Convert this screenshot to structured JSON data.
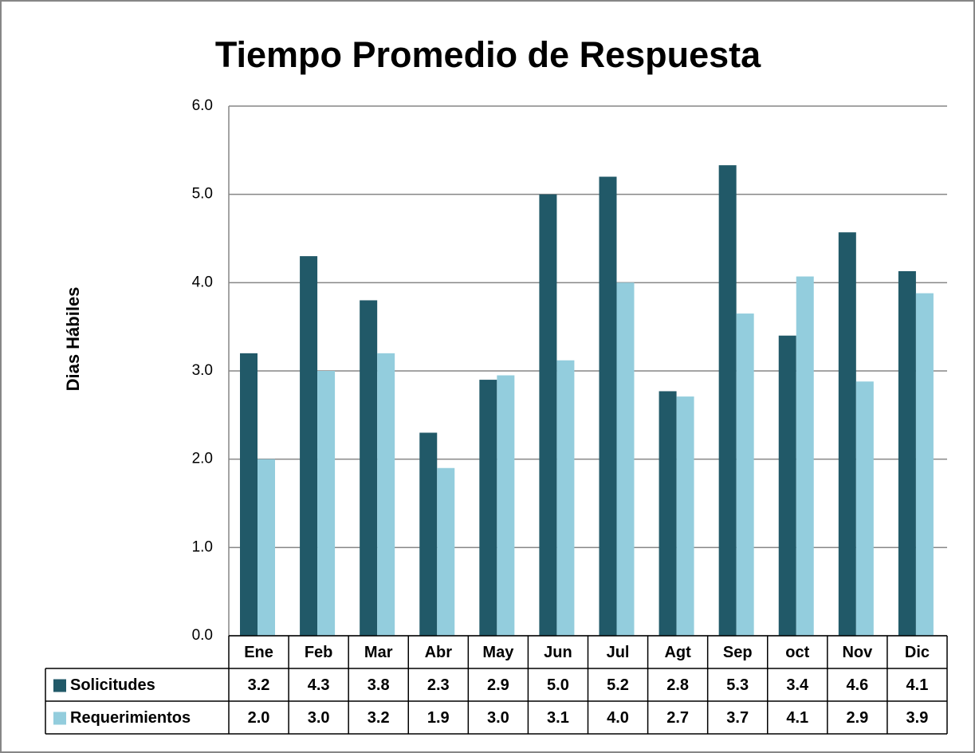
{
  "chart_data": {
    "type": "bar",
    "title": "Tiempo Promedio de Respuesta",
    "y_label": "Dias Hábiles",
    "categories": [
      "Ene",
      "Feb",
      "Mar",
      "Abr",
      "May",
      "Jun",
      "Jul",
      "Agt",
      "Sep",
      "oct",
      "Nov",
      "Dic"
    ],
    "series": [
      {
        "name": "Solicitudes",
        "color": "#215968",
        "values": [
          3.2,
          4.3,
          3.8,
          2.3,
          2.9,
          5.0,
          5.2,
          2.77,
          5.33,
          3.4,
          4.57,
          4.13
        ],
        "value_labels": [
          "3.2",
          "4.3",
          "3.8",
          "2.3",
          "2.9",
          "5.0",
          "5.2",
          "2.8",
          "5.3",
          "3.4",
          "4.6",
          "4.1"
        ]
      },
      {
        "name": "Requerimientos",
        "color": "#93cddd",
        "values": [
          2.0,
          3.0,
          3.2,
          1.9,
          2.95,
          3.12,
          4.0,
          2.71,
          3.65,
          4.07,
          2.88,
          3.88
        ],
        "value_labels": [
          "2.0",
          "3.0",
          "3.2",
          "1.9",
          "3.0",
          "3.1",
          "4.0",
          "2.7",
          "3.7",
          "4.1",
          "2.9",
          "3.9"
        ]
      }
    ],
    "ylim": [
      0,
      6
    ],
    "yticks": [
      {
        "value": 0,
        "label": "0.0"
      },
      {
        "value": 1,
        "label": "1.0"
      },
      {
        "value": 2,
        "label": "2.0"
      },
      {
        "value": 3,
        "label": "3.0"
      },
      {
        "value": 4,
        "label": "4.0"
      },
      {
        "value": 5,
        "label": "5.0"
      },
      {
        "value": 6,
        "label": "6.0"
      }
    ],
    "grid": true
  }
}
